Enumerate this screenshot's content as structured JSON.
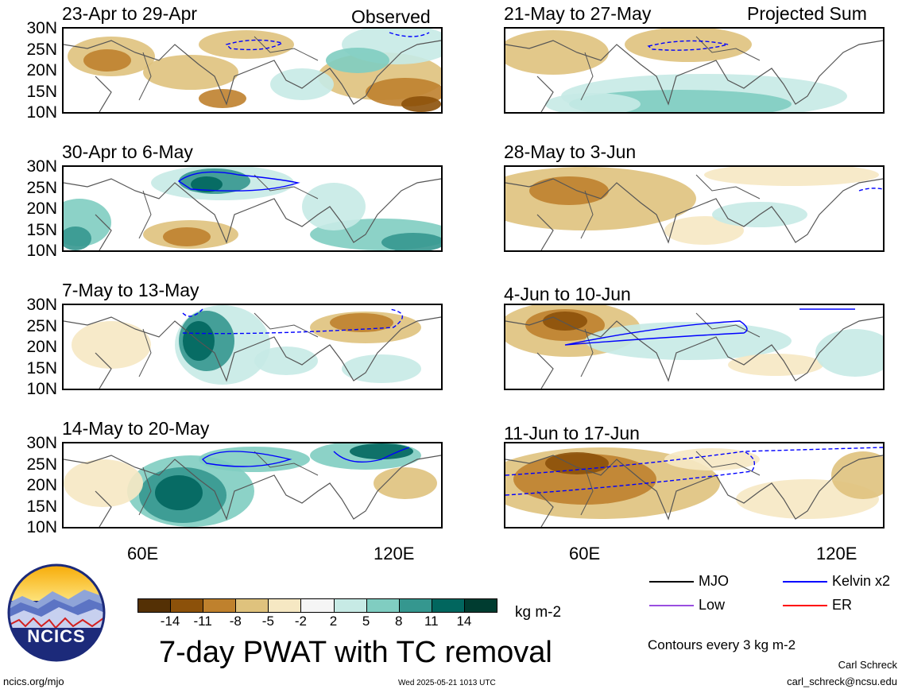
{
  "panels": [
    {
      "title": "23-Apr to 29-Apr",
      "tag": "Observed"
    },
    {
      "title": "21-May to 27-May",
      "tag": "Projected Sum"
    },
    {
      "title": "30-Apr to 6-May",
      "tag": ""
    },
    {
      "title": "28-May to 3-Jun",
      "tag": ""
    },
    {
      "title": "7-May to 13-May",
      "tag": ""
    },
    {
      "title": "4-Jun to 10-Jun",
      "tag": ""
    },
    {
      "title": "14-May to 20-May",
      "tag": ""
    },
    {
      "title": "11-Jun to 17-Jun",
      "tag": ""
    }
  ],
  "lat_labels": [
    "30N",
    "25N",
    "20N",
    "15N",
    "10N"
  ],
  "lon_labels": [
    "60E",
    "120E"
  ],
  "colorbar": {
    "colors": [
      "#543005",
      "#8c510a",
      "#bf812d",
      "#dfc27d",
      "#f6e8c3",
      "#f5f5f5",
      "#c7eae5",
      "#80cdc1",
      "#35978f",
      "#01665e",
      "#003c30"
    ],
    "ticks": [
      "-14",
      "-11",
      "-8",
      "-5",
      "-2",
      "2",
      "5",
      "8",
      "11",
      "14"
    ],
    "units": "kg m-2"
  },
  "title": "7-day PWAT with TC removal",
  "legend": {
    "items": [
      {
        "label": "MJO",
        "color": "#000000"
      },
      {
        "label": "Kelvin x2",
        "color": "#0000ff"
      },
      {
        "label": "Low",
        "color": "#9a4ee0"
      },
      {
        "label": "ER",
        "color": "#ff0000"
      }
    ],
    "contours_note": "Contours every 3 kg m-2"
  },
  "logo_text": "NCICS",
  "footer": {
    "left": "ncics.org/mjo",
    "center": "Wed 2025-05-21 1013 UTC",
    "author": "Carl Schreck",
    "email": "carl_schreck@ncsu.edu"
  }
}
